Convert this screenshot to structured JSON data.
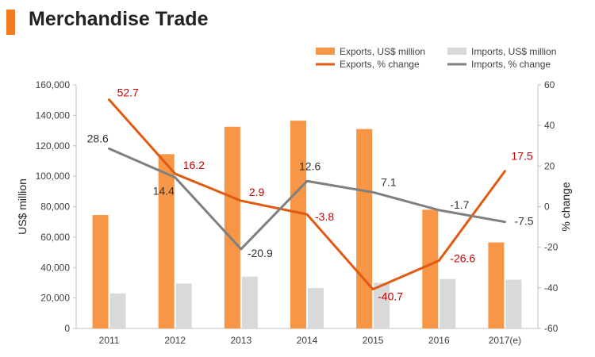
{
  "header": {
    "title": "Merchandise Trade",
    "accent_color": "#f47b20"
  },
  "chart_data": {
    "type": "bar",
    "title": "Merchandise Trade",
    "categories": [
      "2011",
      "2012",
      "2013",
      "2014",
      "2015",
      "2016",
      "2017(e)"
    ],
    "ylabel": "US$ million",
    "y2label": "% change",
    "ylim": [
      0,
      160000
    ],
    "y_ticks": [
      0,
      20000,
      40000,
      60000,
      80000,
      100000,
      120000,
      140000,
      160000
    ],
    "y_tick_labels": [
      "0",
      "20,000",
      "40,000",
      "60,000",
      "80,000",
      "100,000",
      "120,000",
      "140,000",
      "160,000"
    ],
    "y2lim": [
      -60,
      60
    ],
    "y2_ticks": [
      -60,
      -40,
      -20,
      0,
      20,
      40,
      60
    ],
    "y2_tick_labels": [
      "-60",
      "-40",
      "-20",
      "0",
      "20",
      "40",
      "60"
    ],
    "grid": false,
    "legend_position": "top-right",
    "series": [
      {
        "name": "Exports, US$ million",
        "kind": "bar",
        "axis": "left",
        "color": "#f79646",
        "values": [
          74500,
          114500,
          132500,
          136500,
          131000,
          78000,
          56500
        ]
      },
      {
        "name": "Imports, US$ million",
        "kind": "bar",
        "axis": "left",
        "color": "#d9d9d9",
        "values": [
          23000,
          29500,
          34000,
          26500,
          30000,
          32500,
          32000
        ]
      },
      {
        "name": "Exports, % change",
        "kind": "line",
        "axis": "right",
        "color": "#e05a10",
        "values": [
          52.7,
          16.2,
          2.9,
          -3.8,
          -40.7,
          -26.6,
          17.5
        ],
        "value_labels": [
          "52.7",
          "16.2",
          "2.9",
          "-3.8",
          "-40.7",
          "-26.6",
          "17.5"
        ],
        "label_color": "#cc0000"
      },
      {
        "name": "Imports, % change",
        "kind": "line",
        "axis": "right",
        "color": "#7f7f7f",
        "values": [
          28.6,
          14.4,
          -20.9,
          12.6,
          7.1,
          -1.7,
          -7.5
        ],
        "value_labels": [
          "28.6",
          "14.4",
          "-20.9",
          "12.6",
          "7.1",
          "-1.7",
          "-7.5"
        ],
        "label_color": "#333333"
      }
    ]
  }
}
